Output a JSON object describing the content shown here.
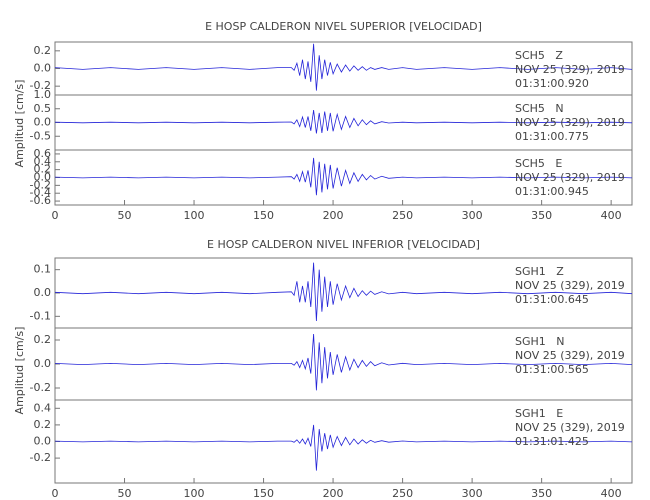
{
  "chart_data": [
    {
      "type": "line",
      "title": "E HOSP CALDERON NIVEL SUPERIOR [VELOCIDAD]",
      "ylabel": "Amplitud [cm/s]",
      "x": [
        0,
        20,
        40,
        60,
        80,
        100,
        120,
        140,
        160,
        170,
        172,
        174,
        176,
        178,
        180,
        182,
        184,
        186,
        188,
        190,
        192,
        194,
        196,
        198,
        200,
        203,
        206,
        209,
        212,
        215,
        218,
        221,
        224,
        227,
        230,
        235,
        240,
        250,
        260,
        280,
        300,
        320,
        340,
        360,
        380,
        400,
        415
      ],
      "xlim": [
        0,
        415
      ],
      "xticks": [
        0,
        50,
        100,
        150,
        200,
        250,
        300,
        350,
        400
      ],
      "series": [
        {
          "name": "SCH5   Z",
          "date": "NOV 25 (329), 2019",
          "time": "01:31:00.920",
          "color": "#2424d8",
          "ylim": [
            -0.3,
            0.3
          ],
          "yticks": [
            -0.2,
            {
              "value": 0,
              "label": "0.0"
            },
            0.2
          ],
          "values": [
            0.01,
            -0.01,
            0.01,
            -0.01,
            0.01,
            -0.01,
            0.01,
            -0.01,
            0.01,
            0.01,
            -0.02,
            0.06,
            -0.08,
            0.1,
            -0.12,
            0.08,
            -0.15,
            0.28,
            -0.25,
            0.15,
            -0.12,
            0.1,
            -0.08,
            0.07,
            -0.06,
            0.05,
            -0.04,
            0.04,
            -0.03,
            0.03,
            -0.02,
            0.02,
            -0.02,
            0.01,
            -0.01,
            0.01,
            -0.01,
            0.01,
            -0.01,
            0.01,
            -0.01,
            0.01,
            -0.01,
            0.01,
            -0.01,
            0.01,
            -0.01
          ]
        },
        {
          "name": "SCH5   N",
          "date": "NOV 25 (329), 2019",
          "time": "01:31:00.775",
          "color": "#2424d8",
          "ylim": [
            -1,
            1
          ],
          "yticks": [
            -0.5,
            {
              "value": 0,
              "label": "0.0"
            },
            0.5,
            {
              "value": 1,
              "label": "1.0"
            }
          ],
          "values": [
            0.01,
            -0.01,
            0.01,
            -0.01,
            0.01,
            -0.01,
            0.01,
            -0.01,
            0.01,
            0.02,
            -0.05,
            0.1,
            -0.15,
            0.2,
            -0.18,
            0.22,
            -0.3,
            0.45,
            -0.4,
            0.35,
            -0.38,
            0.4,
            -0.3,
            0.35,
            -0.32,
            0.3,
            -0.25,
            0.22,
            -0.18,
            0.15,
            -0.12,
            0.1,
            -0.08,
            0.06,
            -0.05,
            0.03,
            -0.02,
            0.01,
            -0.01,
            0.01,
            -0.01,
            0.01,
            -0.01,
            0.01,
            -0.01,
            0.01,
            -0.01
          ]
        },
        {
          "name": "SCH5   E",
          "date": "NOV 25 (329), 2019",
          "time": "01:31:00.945",
          "color": "#2424d8",
          "ylim": [
            -0.7,
            0.7
          ],
          "yticks": [
            -0.6,
            -0.4,
            -0.2,
            {
              "value": 0,
              "label": "0.0"
            },
            0.2,
            0.4,
            0.6
          ],
          "values": [
            0.01,
            -0.01,
            0.01,
            -0.01,
            0.01,
            -0.01,
            0.01,
            -0.01,
            0.01,
            0.02,
            -0.04,
            0.08,
            -0.1,
            0.15,
            -0.12,
            0.18,
            -0.25,
            0.5,
            -0.45,
            0.4,
            -0.38,
            0.35,
            -0.3,
            0.32,
            -0.28,
            0.25,
            -0.22,
            0.18,
            -0.15,
            0.12,
            -0.1,
            0.08,
            -0.06,
            0.05,
            -0.04,
            0.03,
            -0.02,
            0.01,
            -0.01,
            0.01,
            -0.01,
            0.01,
            -0.01,
            0.01,
            -0.01,
            0.01,
            -0.01
          ]
        }
      ]
    },
    {
      "type": "line",
      "title": "E HOSP CALDERON NIVEL INFERIOR [VELOCIDAD]",
      "ylabel": "Amplitud [cm/s]",
      "x": [
        0,
        20,
        40,
        60,
        80,
        100,
        120,
        140,
        160,
        170,
        172,
        174,
        176,
        178,
        180,
        182,
        184,
        186,
        188,
        190,
        192,
        194,
        196,
        198,
        200,
        203,
        206,
        209,
        212,
        215,
        218,
        221,
        224,
        227,
        230,
        235,
        240,
        250,
        260,
        280,
        300,
        320,
        340,
        360,
        380,
        400,
        415
      ],
      "xlim": [
        0,
        415
      ],
      "xticks": [
        0,
        50,
        100,
        150,
        200,
        250,
        300,
        350,
        400
      ],
      "series": [
        {
          "name": "SGH1   Z",
          "date": "NOV 25 (329), 2019",
          "time": "01:31:00.645",
          "color": "#2424d8",
          "ylim": [
            -0.15,
            0.15
          ],
          "yticks": [
            -0.1,
            {
              "value": 0,
              "label": "0.0"
            },
            0.1
          ],
          "values": [
            0.003,
            -0.003,
            0.003,
            -0.003,
            0.003,
            -0.003,
            0.003,
            -0.003,
            0.003,
            0.005,
            -0.01,
            0.05,
            -0.04,
            0.03,
            -0.04,
            0.05,
            -0.06,
            0.13,
            -0.12,
            0.1,
            -0.08,
            0.07,
            -0.06,
            0.05,
            -0.05,
            0.04,
            -0.03,
            0.03,
            -0.02,
            0.02,
            -0.015,
            0.01,
            -0.01,
            0.008,
            -0.006,
            0.005,
            -0.004,
            0.003,
            -0.003,
            0.003,
            -0.003,
            0.003,
            -0.003,
            0.003,
            -0.003,
            0.003,
            -0.003
          ]
        },
        {
          "name": "SGH1   N",
          "date": "NOV 25 (329), 2019",
          "time": "01:31:00.565",
          "color": "#2424d8",
          "ylim": [
            -0.3,
            0.3
          ],
          "yticks": [
            -0.2,
            {
              "value": 0,
              "label": "0.0"
            },
            0.2
          ],
          "values": [
            0.005,
            -0.005,
            0.005,
            -0.005,
            0.005,
            -0.005,
            0.005,
            -0.005,
            0.005,
            0.005,
            -0.01,
            0.02,
            -0.03,
            0.03,
            -0.04,
            0.05,
            -0.08,
            0.25,
            -0.22,
            0.18,
            -0.16,
            0.14,
            -0.12,
            0.1,
            -0.09,
            0.08,
            -0.07,
            0.06,
            -0.05,
            0.04,
            -0.03,
            0.03,
            -0.02,
            0.02,
            -0.015,
            0.01,
            -0.008,
            0.006,
            -0.005,
            0.005,
            -0.005,
            0.005,
            -0.005,
            0.005,
            -0.005,
            0.005,
            -0.005
          ]
        },
        {
          "name": "SGH1   E",
          "date": "NOV 25 (329), 2019",
          "time": "01:31:01.425",
          "color": "#2424d8",
          "ylim": [
            -0.5,
            0.5
          ],
          "yticks": [
            -0.2,
            {
              "value": 0,
              "label": "0.0"
            },
            0.2,
            0.4
          ],
          "values": [
            0.005,
            -0.005,
            0.005,
            -0.005,
            0.005,
            -0.005,
            0.005,
            -0.005,
            0.005,
            0.005,
            -0.01,
            0.02,
            -0.02,
            0.03,
            -0.03,
            0.04,
            -0.06,
            0.2,
            -0.35,
            0.15,
            -0.12,
            0.1,
            -0.09,
            0.08,
            -0.07,
            0.06,
            -0.05,
            0.05,
            -0.04,
            0.03,
            -0.03,
            0.02,
            -0.02,
            0.015,
            -0.01,
            0.01,
            -0.008,
            0.006,
            -0.005,
            0.005,
            -0.005,
            0.005,
            -0.005,
            0.005,
            -0.005,
            0.005,
            -0.005
          ]
        }
      ]
    }
  ]
}
